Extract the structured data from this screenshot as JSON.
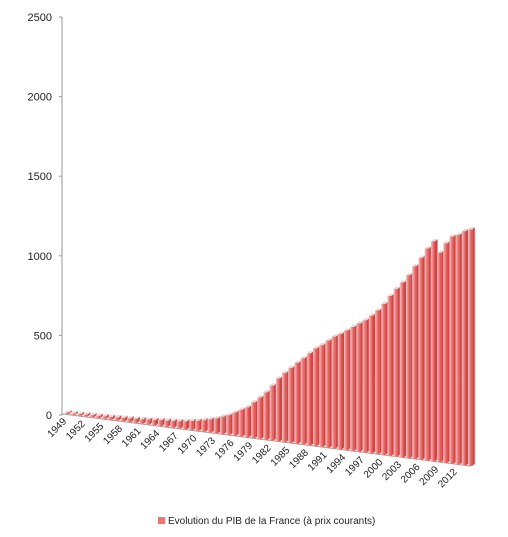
{
  "chart_data": {
    "type": "bar",
    "series": [
      {
        "name": "Evolution du PIB de la France (à prix courants)",
        "color": "#f07474",
        "x": [
          1949,
          1950,
          1951,
          1952,
          1953,
          1954,
          1955,
          1956,
          1957,
          1958,
          1959,
          1960,
          1961,
          1962,
          1963,
          1964,
          1965,
          1966,
          1967,
          1968,
          1969,
          1970,
          1971,
          1972,
          1973,
          1974,
          1975,
          1976,
          1977,
          1978,
          1979,
          1980,
          1981,
          1982,
          1983,
          1984,
          1985,
          1986,
          1987,
          1988,
          1989,
          1990,
          1991,
          1992,
          1993,
          1994,
          1995,
          1996,
          1997,
          1998,
          1999,
          2000,
          2001,
          2002,
          2003,
          2004,
          2005,
          2006,
          2007,
          2008,
          2009,
          2010,
          2011,
          2012,
          2013,
          2014
        ],
        "values": [
          7,
          9,
          11,
          12,
          13,
          14,
          16,
          17,
          19,
          21,
          23,
          25,
          27,
          30,
          33,
          36,
          38,
          41,
          44,
          48,
          55,
          62,
          70,
          80,
          90,
          106,
          120,
          141,
          162,
          182,
          216,
          250,
          286,
          331,
          378,
          416,
          451,
          486,
          517,
          551,
          585,
          608,
          639,
          667,
          687,
          711,
          737,
          761,
          784,
          815,
          849,
          892,
          943,
          988,
          1029,
          1076,
          1132,
          1185,
          1242,
          1288,
          1224,
          1283,
          1325,
          1338,
          1363,
          1376
        ]
      }
    ],
    "x_tick_labels": [
      "1949",
      "1952",
      "1955",
      "1958",
      "1961",
      "1964",
      "1967",
      "1970",
      "1973",
      "1976",
      "1979",
      "1982",
      "1985",
      "1988",
      "1991",
      "1994",
      "1997",
      "2000",
      "2003",
      "2006",
      "2009",
      "2012"
    ],
    "y_ticks": [
      0,
      500,
      1000,
      1500,
      2000,
      2500
    ],
    "ylim": [
      0,
      2500
    ],
    "title": "",
    "xlabel": "",
    "ylabel": "",
    "legend_position": "bottom-center",
    "style": "3d-perspective"
  },
  "legend": {
    "label": "Evolution du PIB de la France (à prix courants)",
    "color": "#f07474"
  }
}
